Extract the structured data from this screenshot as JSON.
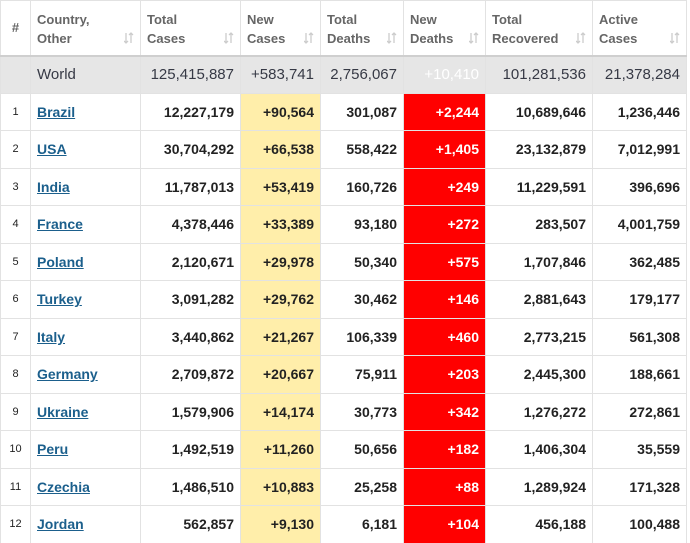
{
  "header": {
    "columns": [
      "#",
      "Country,\nOther",
      "Total\nCases",
      "New\nCases",
      "Total\nDeaths",
      "New\nDeaths",
      "Total\nRecovered",
      "Active\nCases"
    ]
  },
  "table": {
    "world": [
      "World",
      "125,415,887",
      "+583,741",
      "2,756,067",
      "+10,410",
      "101,281,536",
      "21,378,284"
    ],
    "rows": [
      [
        "1",
        "Brazil",
        "12,227,179",
        "+90,564",
        "301,087",
        "+2,244",
        "10,689,646",
        "1,236,446"
      ],
      [
        "2",
        "USA",
        "30,704,292",
        "+66,538",
        "558,422",
        "+1,405",
        "23,132,879",
        "7,012,991"
      ],
      [
        "3",
        "India",
        "11,787,013",
        "+53,419",
        "160,726",
        "+249",
        "11,229,591",
        "396,696"
      ],
      [
        "4",
        "France",
        "4,378,446",
        "+33,389",
        "93,180",
        "+272",
        "283,507",
        "4,001,759"
      ],
      [
        "5",
        "Poland",
        "2,120,671",
        "+29,978",
        "50,340",
        "+575",
        "1,707,846",
        "362,485"
      ],
      [
        "6",
        "Turkey",
        "3,091,282",
        "+29,762",
        "30,462",
        "+146",
        "2,881,643",
        "179,177"
      ],
      [
        "7",
        "Italy",
        "3,440,862",
        "+21,267",
        "106,339",
        "+460",
        "2,773,215",
        "561,308"
      ],
      [
        "8",
        "Germany",
        "2,709,872",
        "+20,667",
        "75,911",
        "+203",
        "2,445,300",
        "188,661"
      ],
      [
        "9",
        "Ukraine",
        "1,579,906",
        "+14,174",
        "30,773",
        "+342",
        "1,276,272",
        "272,861"
      ],
      [
        "10",
        "Peru",
        "1,492,519",
        "+11,260",
        "50,656",
        "+182",
        "1,406,304",
        "35,559"
      ],
      [
        "11",
        "Czechia",
        "1,486,510",
        "+10,883",
        "25,258",
        "+88",
        "1,289,924",
        "171,328"
      ],
      [
        "12",
        "Jordan",
        "562,857",
        "+9,130",
        "6,181",
        "+104",
        "456,188",
        "100,488"
      ]
    ]
  }
}
